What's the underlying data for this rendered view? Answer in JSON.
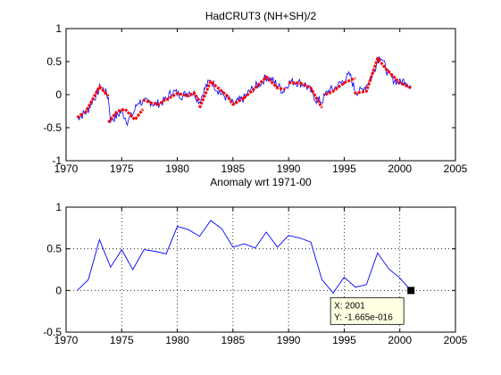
{
  "figure": {
    "background": "#ffffff",
    "line_color": "#0000ff",
    "trend_color": "#ff0000",
    "grid_color": "#000000"
  },
  "chart_data": [
    {
      "type": "line",
      "title": "HadCRUT3 (NH+SH)/2",
      "xlabel": "",
      "ylabel": "",
      "xlim": [
        1970,
        2005
      ],
      "ylim": [
        -1,
        1
      ],
      "xticks": [
        1970,
        1975,
        1980,
        1985,
        1990,
        1995,
        2000,
        2005
      ],
      "yticks": [
        -1,
        -0.5,
        0,
        0.5,
        1
      ],
      "xtick_labels": [
        "1970",
        "1975",
        "1980",
        "1985",
        "1990",
        "1995",
        "2000",
        "2005"
      ],
      "ytick_labels": [
        "-1",
        "-0.5",
        "0",
        "0.5",
        "1"
      ],
      "grid": false,
      "series": [
        {
          "color": "#0000ff",
          "style": "monthly-noisy",
          "x": [
            1971.0,
            1971.3,
            1971.7,
            1972.0,
            1972.4,
            1972.8,
            1973.1,
            1973.5,
            1973.8,
            1974.0,
            1974.5,
            1975.0,
            1975.5,
            1976.0,
            1976.5,
            1977.0,
            1977.5,
            1978.0,
            1978.5,
            1979.0,
            1979.5,
            1980.0,
            1980.5,
            1981.0,
            1981.5,
            1982.0,
            1982.5,
            1983.0,
            1983.5,
            1984.0,
            1984.5,
            1985.0,
            1985.5,
            1986.0,
            1986.5,
            1987.0,
            1987.5,
            1988.0,
            1988.5,
            1989.0,
            1989.5,
            1990.0,
            1990.5,
            1991.0,
            1991.5,
            1992.0,
            1992.5,
            1993.0,
            1993.5,
            1994.0,
            1994.5,
            1995.0,
            1995.5,
            1996.0,
            1996.5,
            1997.0,
            1997.5,
            1998.0,
            1998.3,
            1998.6,
            1999.0,
            1999.5,
            2000.0,
            2000.5,
            2001.0
          ],
          "y": [
            -0.33,
            -0.32,
            -0.28,
            -0.22,
            -0.08,
            0.02,
            0.13,
            0.05,
            -0.05,
            -0.38,
            -0.33,
            -0.25,
            -0.4,
            -0.3,
            -0.1,
            -0.12,
            -0.1,
            -0.15,
            -0.12,
            -0.08,
            0.05,
            0.02,
            -0.02,
            0.05,
            0.02,
            -0.1,
            0.1,
            0.22,
            0.1,
            0.0,
            -0.05,
            -0.15,
            -0.1,
            -0.05,
            0.05,
            0.12,
            0.18,
            0.27,
            0.22,
            0.15,
            0.05,
            0.18,
            0.2,
            0.18,
            0.15,
            0.05,
            -0.08,
            -0.1,
            0.05,
            0.08,
            0.15,
            0.22,
            0.3,
            0.05,
            0.05,
            0.15,
            0.28,
            0.52,
            0.6,
            0.45,
            0.3,
            0.22,
            0.18,
            0.22,
            0.12
          ]
        }
      ],
      "trend_segments": [
        [
          [
            1971.0,
            -0.35
          ],
          [
            1971.5,
            -0.28
          ]
        ],
        [
          [
            1971.7,
            -0.28
          ],
          [
            1973.0,
            0.12
          ],
          [
            1973.8,
            -0.02
          ]
        ],
        [
          [
            1973.8,
            -0.42
          ],
          [
            1974.6,
            -0.25
          ],
          [
            1975.3,
            -0.22
          ],
          [
            1976.2,
            -0.38
          ],
          [
            1976.9,
            -0.22
          ]
        ],
        [
          [
            1976.9,
            -0.08
          ],
          [
            1977.6,
            -0.12
          ],
          [
            1978.3,
            -0.15
          ],
          [
            1978.9,
            -0.08
          ]
        ],
        [
          [
            1979.0,
            -0.08
          ],
          [
            1980.0,
            0.02
          ],
          [
            1981.0,
            -0.02
          ],
          [
            1981.5,
            0.03
          ],
          [
            1982.0,
            -0.1
          ]
        ],
        [
          [
            1982.0,
            -0.2
          ],
          [
            1983.0,
            0.2
          ],
          [
            1984.5,
            -0.02
          ],
          [
            1985.0,
            -0.15
          ],
          [
            1986.0,
            -0.05
          ]
        ],
        [
          [
            1986.0,
            -0.05
          ],
          [
            1987.0,
            0.1
          ],
          [
            1988.0,
            0.27
          ],
          [
            1989.0,
            0.1
          ],
          [
            1989.7,
            0.08
          ]
        ],
        [
          [
            1990.0,
            0.18
          ],
          [
            1991.0,
            0.18
          ],
          [
            1992.0,
            0.1
          ],
          [
            1993.0,
            -0.2
          ]
        ],
        [
          [
            1993.3,
            0.0
          ],
          [
            1994.0,
            0.05
          ],
          [
            1995.0,
            0.18
          ],
          [
            1996.0,
            0.25
          ]
        ],
        [
          [
            1995.9,
            0.02
          ],
          [
            1997.0,
            0.05
          ],
          [
            1998.0,
            0.55
          ],
          [
            1998.8,
            0.38
          ],
          [
            2000.0,
            0.18
          ],
          [
            2001.0,
            0.1
          ]
        ]
      ]
    },
    {
      "type": "line",
      "title": "Anomaly wrt 1971-00",
      "xlabel": "",
      "ylabel": "",
      "xlim": [
        1970,
        2005
      ],
      "ylim": [
        -0.5,
        1
      ],
      "xticks": [
        1970,
        1975,
        1980,
        1985,
        1990,
        1995,
        2000,
        2005
      ],
      "yticks": [
        -0.5,
        0,
        0.5,
        1
      ],
      "xtick_labels": [
        "1970",
        "1975",
        "1980",
        "1985",
        "1990",
        "1995",
        "2000",
        "2005"
      ],
      "ytick_labels": [
        "-0.5",
        "0",
        "0.5",
        "1"
      ],
      "grid": true,
      "series": [
        {
          "color": "#0000ff",
          "x": [
            1971,
            1972,
            1973,
            1974,
            1975,
            1976,
            1977,
            1978,
            1979,
            1980,
            1981,
            1982,
            1983,
            1984,
            1985,
            1986,
            1987,
            1988,
            1989,
            1990,
            1991,
            1992,
            1993,
            1994,
            1995,
            1996,
            1997,
            1998,
            1999,
            2000,
            2001
          ],
          "y": [
            0.0,
            0.13,
            0.61,
            0.28,
            0.49,
            0.25,
            0.49,
            0.47,
            0.44,
            0.77,
            0.73,
            0.65,
            0.84,
            0.74,
            0.52,
            0.56,
            0.51,
            0.7,
            0.52,
            0.66,
            0.63,
            0.58,
            0.13,
            -0.03,
            0.16,
            0.04,
            0.07,
            0.45,
            0.26,
            0.15,
            0.0
          ]
        }
      ],
      "datatip": {
        "x": 2001,
        "y": 0.0,
        "label_x": "X: 2001",
        "label_y": "Y: -1.665e-016",
        "box_color": "#ffffe1"
      }
    }
  ]
}
